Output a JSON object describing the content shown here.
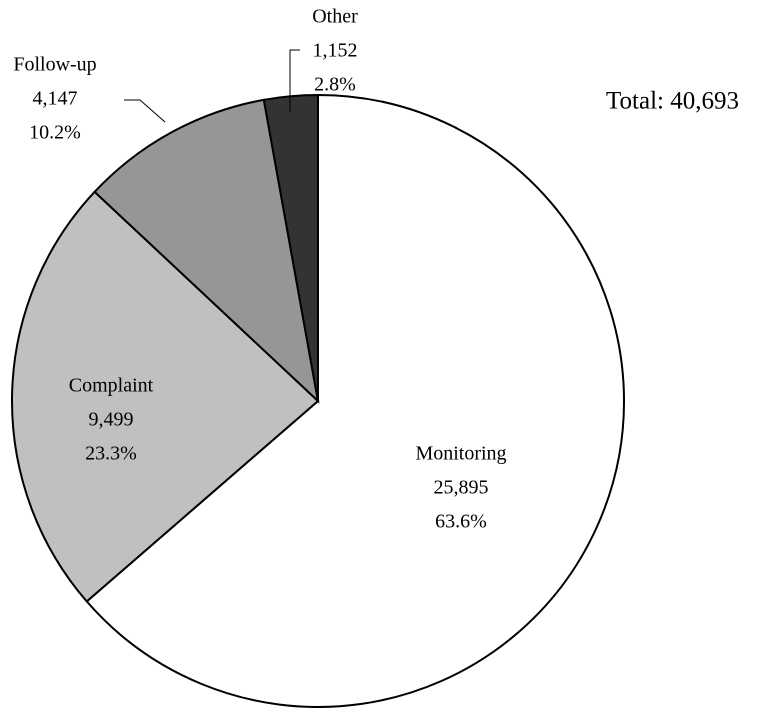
{
  "chart_data": {
    "type": "pie",
    "annotation": "Total: 40,693",
    "categories": [
      "Monitoring",
      "Complaint",
      "Follow-up",
      "Other"
    ],
    "values": [
      25895,
      9499,
      4147,
      1152
    ],
    "value_labels": [
      "25,895",
      "9,499",
      "4,147",
      "1,152"
    ],
    "percents": [
      63.6,
      23.3,
      10.2,
      2.8
    ],
    "percent_labels": [
      "63.6%",
      "23.3%",
      "10.2%",
      "2.8%"
    ],
    "colors": [
      "#ffffff",
      "#c0c0c0",
      "#969696",
      "#333333"
    ]
  }
}
